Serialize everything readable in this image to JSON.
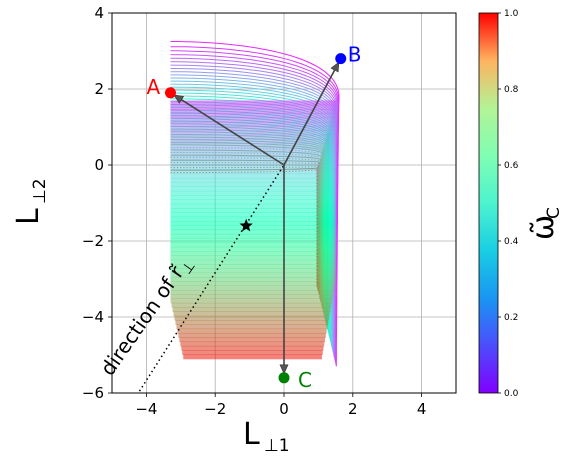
{
  "chart_data": {
    "type": "line",
    "title": "",
    "xlabel": {
      "main": "L",
      "sub": "⊥1"
    },
    "ylabel": {
      "main": "L",
      "sub": "⊥2"
    },
    "xlim": [
      -5,
      5
    ],
    "ylim": [
      -6,
      4
    ],
    "xticks": [
      -4,
      -2,
      0,
      2,
      4
    ],
    "yticks": [
      -6,
      -4,
      -2,
      0,
      2,
      4
    ],
    "xtick_labels": [
      "−4",
      "−2",
      "0",
      "2",
      "4"
    ],
    "ytick_labels": [
      "−6",
      "−4",
      "−2",
      "0",
      "2",
      "4"
    ],
    "grid": true,
    "colormap": "rainbow",
    "colorbar": {
      "label": "ω̃",
      "label_sub": "C",
      "range": [
        0,
        1
      ],
      "ticks": [
        "0.0",
        "0.2",
        "0.4",
        "0.6",
        "0.8",
        "1.0"
      ]
    },
    "family_of_curves": {
      "description_value": "parametric curves colored by omega_C",
      "boundary_left_x": -3.3,
      "boundary_right_x": 1.6,
      "top_y": 3.25,
      "bottom_y": -5.6
    },
    "points": [
      {
        "name": "A",
        "x": -3.3,
        "y": 1.9,
        "color": "#ff0000"
      },
      {
        "name": "B",
        "x": 1.65,
        "y": 2.8,
        "color": "#0000ff"
      },
      {
        "name": "C",
        "x": 0.0,
        "y": -5.6,
        "color": "#008000"
      }
    ],
    "arrows": [
      {
        "from": [
          0,
          0
        ],
        "to": [
          -3.3,
          1.9
        ]
      },
      {
        "from": [
          0,
          0
        ],
        "to": [
          1.65,
          2.8
        ]
      },
      {
        "from": [
          0,
          0
        ],
        "to": [
          0.0,
          -5.6
        ]
      }
    ],
    "star": {
      "x": -1.1,
      "y": -1.6
    },
    "dotted_line": {
      "from": [
        -4.2,
        -5.95
      ],
      "to": [
        0.0,
        0.0
      ]
    },
    "annotation": {
      "text": "direction of ",
      "symbol": "r̃",
      "symbol_sub": "⊥"
    }
  }
}
